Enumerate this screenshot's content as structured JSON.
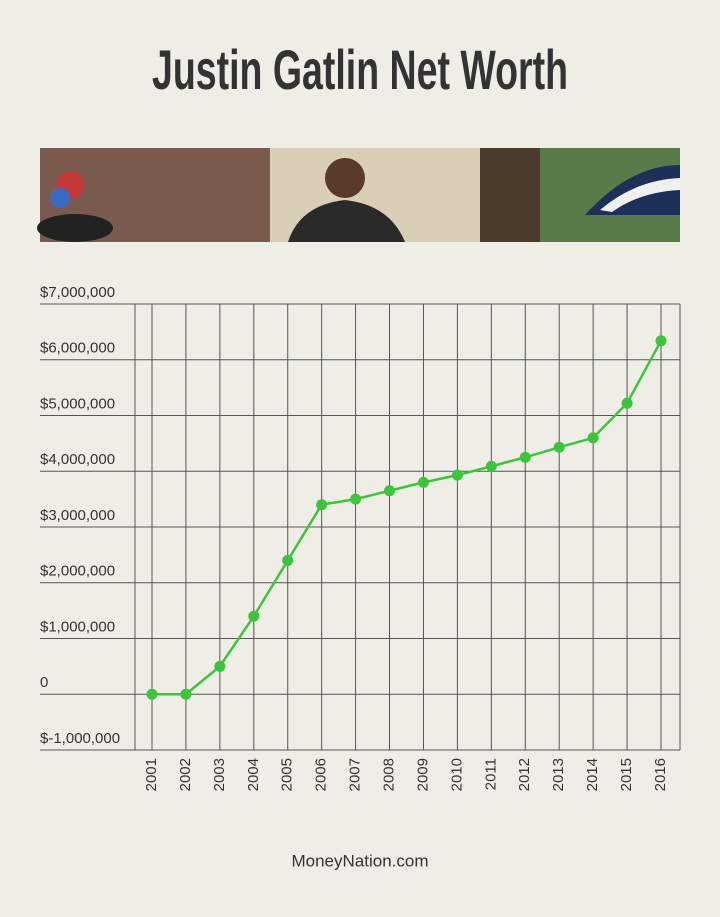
{
  "chart_data": {
    "type": "line",
    "title": "Justin Gatlin Net Worth",
    "source": "MoneyNation.com",
    "categories": [
      "2001",
      "2002",
      "2003",
      "2004",
      "2005",
      "2006",
      "2007",
      "2008",
      "2009",
      "2010",
      "2011",
      "2012",
      "2013",
      "2014",
      "2015",
      "2016"
    ],
    "values": [
      0,
      0,
      500000,
      1400000,
      2400000,
      3400000,
      3500000,
      3650000,
      3800000,
      3930000,
      4090000,
      4250000,
      4430000,
      4600000,
      5220000,
      6340000
    ],
    "color": "#3dc43d",
    "ylim": [
      -1000000,
      7000000
    ],
    "yticks": [
      {
        "value": -1000000,
        "label": "$-1,000,000"
      },
      0,
      {
        "value": 1000000,
        "label": "$1,000,000"
      },
      {
        "value": 2000000,
        "label": "$2,000,000"
      },
      {
        "value": 3000000,
        "label": "$3,000,000"
      },
      {
        "value": 4000000,
        "label": "$4,000,000"
      },
      {
        "value": 5000000,
        "label": "$5,000,000"
      },
      {
        "value": 6000000,
        "label": "$6,000,000"
      },
      {
        "value": 7000000,
        "label": "$7,000,000"
      }
    ],
    "grid": true
  }
}
